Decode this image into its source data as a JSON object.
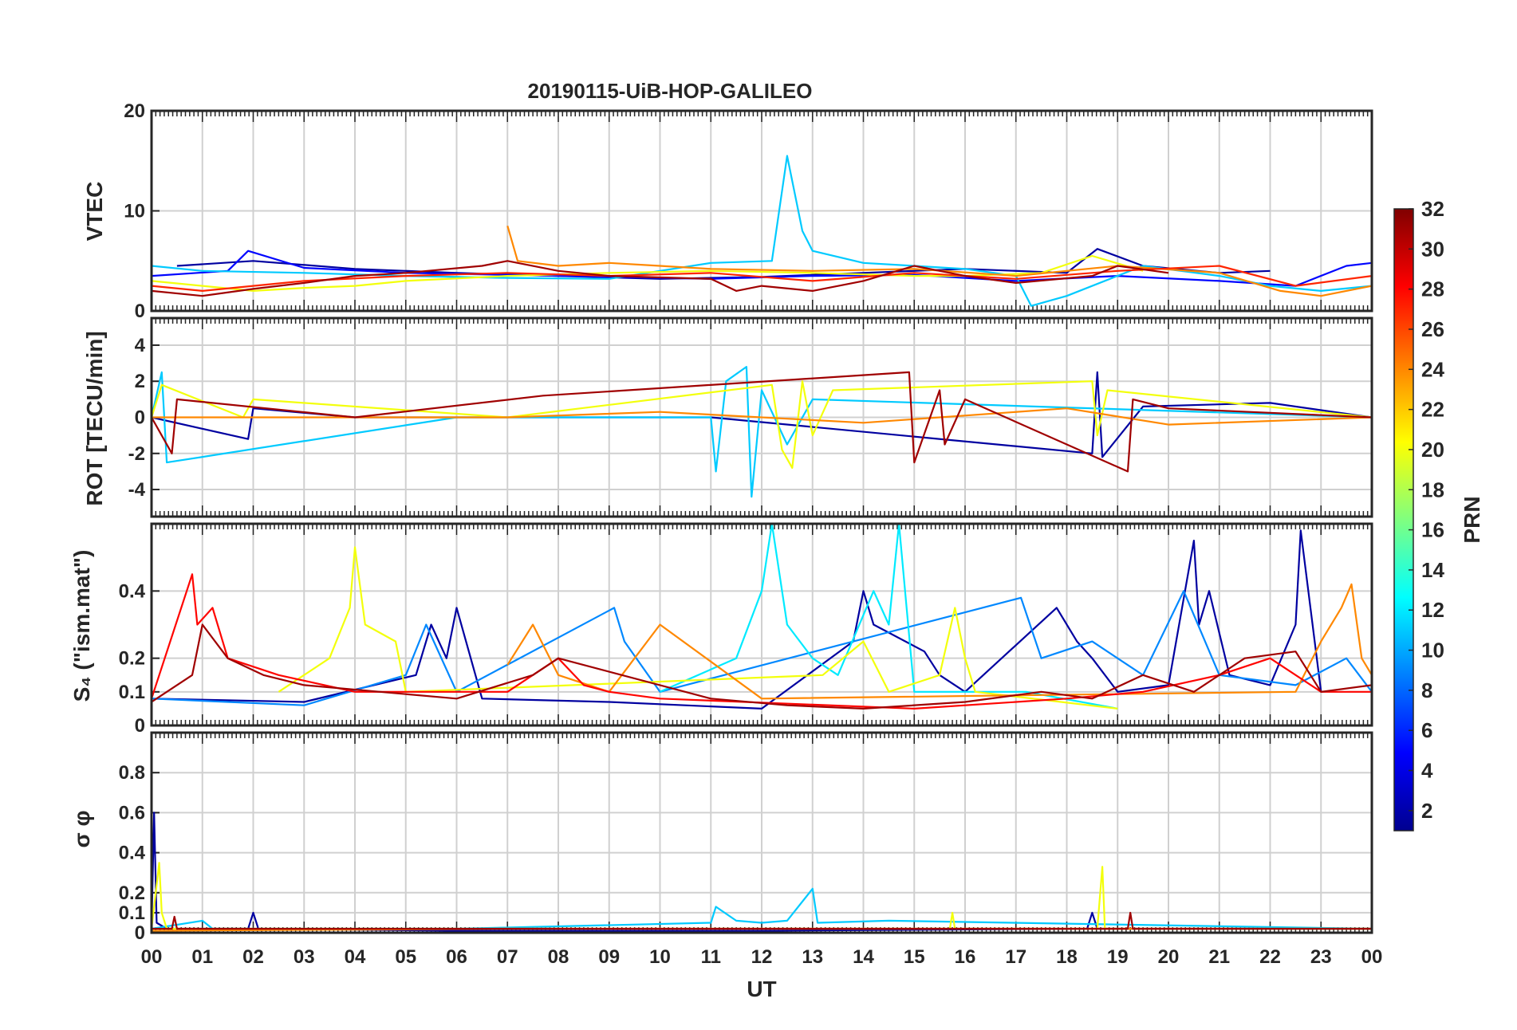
{
  "figure": {
    "title": "20190115-UiB-HOP-GALILEO",
    "xlabel": "UT"
  },
  "chart_data": [
    {
      "type": "line",
      "panel": "VTEC",
      "ylabel": "VTEC",
      "ylim": [
        0,
        20
      ],
      "yticks": [
        0,
        10,
        20
      ],
      "xlim": [
        0,
        24
      ],
      "grid": true,
      "series": [
        {
          "prn": 2,
          "x": [
            0.5,
            2,
            4,
            6,
            8,
            10,
            12,
            14,
            16,
            18,
            18.6,
            19.5,
            21,
            22
          ],
          "y": [
            4.5,
            5,
            4.2,
            3.8,
            3.5,
            3.2,
            3.4,
            3.8,
            4.2,
            3.8,
            6.2,
            4.5,
            3.8,
            4.0
          ]
        },
        {
          "prn": 5,
          "x": [
            0,
            1.5,
            1.9,
            3,
            5,
            7,
            9,
            11,
            13,
            15,
            17,
            19,
            21,
            22.5,
            23.5,
            24
          ],
          "y": [
            3.5,
            4,
            6,
            4.3,
            3.8,
            3.6,
            3.4,
            3.2,
            3.5,
            3.6,
            3.0,
            3.5,
            3.0,
            2.5,
            4.5,
            4.8
          ]
        },
        {
          "prn": 11,
          "x": [
            0,
            1,
            3,
            5,
            7,
            9,
            11,
            12.2,
            12.5,
            12.8,
            13,
            14,
            15,
            16,
            17,
            17.3,
            18,
            19.5,
            21,
            22,
            23,
            24
          ],
          "y": [
            4.5,
            4,
            3.8,
            3.5,
            3.3,
            3.2,
            4.8,
            5,
            15.5,
            8,
            6,
            4.8,
            4.5,
            4.2,
            3.5,
            0.5,
            1.5,
            4.5,
            3.5,
            2.5,
            2.0,
            2.5
          ]
        },
        {
          "prn": 20,
          "x": [
            0,
            1,
            2,
            3,
            4,
            5,
            7,
            9,
            11,
            13,
            15,
            16,
            17.5,
            18.5,
            19.5
          ],
          "y": [
            3.0,
            2.5,
            2.0,
            2.3,
            2.5,
            3.0,
            3.5,
            3.8,
            4.0,
            3.8,
            3.5,
            3.5,
            3.8,
            5.5,
            4.0
          ]
        },
        {
          "prn": 24,
          "x": [
            7.0,
            7.2,
            8,
            9,
            10,
            11,
            13,
            15,
            17,
            19,
            21,
            22.2,
            23,
            24
          ],
          "y": [
            8.5,
            5.0,
            4.5,
            4.8,
            4.5,
            4.2,
            4.0,
            4.2,
            3.5,
            4.5,
            3.8,
            2.0,
            1.5,
            2.5
          ]
        },
        {
          "prn": 27,
          "x": [
            0,
            1,
            2,
            3,
            5,
            7,
            9,
            11,
            13,
            15,
            17,
            19,
            21,
            22.5,
            24
          ],
          "y": [
            2.5,
            2.0,
            2.5,
            3.0,
            3.5,
            3.8,
            3.5,
            3.8,
            3.0,
            3.8,
            3.2,
            4.0,
            4.5,
            2.5,
            3.5
          ]
        },
        {
          "prn": 31,
          "x": [
            0,
            1,
            2,
            3,
            4,
            5,
            6.5,
            7,
            8,
            9,
            11,
            11.5,
            12,
            13,
            14,
            15,
            16,
            17,
            18.5,
            19,
            20
          ],
          "y": [
            2.0,
            1.5,
            2.2,
            2.8,
            3.5,
            3.8,
            4.5,
            5.0,
            4.0,
            3.5,
            3.2,
            2.0,
            2.5,
            2.0,
            3.0,
            4.5,
            3.5,
            2.8,
            3.5,
            4.5,
            3.8
          ]
        }
      ]
    },
    {
      "type": "line",
      "panel": "ROT",
      "ylabel": "ROT [TECU/min]",
      "ylim": [
        -5.5,
        5.5
      ],
      "yticks": [
        -4,
        -2,
        0,
        2,
        4
      ],
      "xlim": [
        0,
        24
      ],
      "grid": true,
      "series": [
        {
          "prn": 2,
          "x": [
            0,
            1.9,
            2.0,
            4,
            11,
            18.5,
            18.6,
            18.7,
            19.5,
            22,
            24
          ],
          "y": [
            0,
            -1.2,
            0.5,
            0,
            0,
            -2.0,
            2.5,
            -2.2,
            0.6,
            0.8,
            0
          ]
        },
        {
          "prn": 11,
          "x": [
            0,
            0.2,
            0.3,
            6,
            11.0,
            11.1,
            11.3,
            11.7,
            11.8,
            12.0,
            12.5,
            13.0,
            24
          ],
          "y": [
            0,
            2.5,
            -2.5,
            0,
            0,
            -3.0,
            2.0,
            2.8,
            -4.4,
            1.5,
            -1.5,
            1.0,
            0
          ]
        },
        {
          "prn": 20,
          "x": [
            0,
            0.2,
            1.8,
            2.0,
            7,
            12.2,
            12.4,
            12.6,
            12.8,
            13.0,
            13.4,
            18.5,
            18.6,
            18.8,
            24
          ],
          "y": [
            0,
            1.8,
            0,
            1.0,
            0,
            1.8,
            -1.8,
            -2.8,
            2.0,
            -1.0,
            1.5,
            2.0,
            -1.0,
            1.5,
            0
          ]
        },
        {
          "prn": 24,
          "x": [
            0,
            7,
            10,
            14,
            18,
            20,
            24
          ],
          "y": [
            0,
            0,
            0.3,
            -0.3,
            0.5,
            -0.4,
            0
          ]
        },
        {
          "prn": 31,
          "x": [
            0,
            0.4,
            0.5,
            4,
            7.7,
            14.9,
            15.0,
            15.5,
            15.6,
            16,
            19.2,
            19.3,
            20,
            24
          ],
          "y": [
            0,
            -2.0,
            1.0,
            0,
            1.2,
            2.5,
            -2.5,
            1.5,
            -1.5,
            1.0,
            -3.0,
            1.0,
            0.5,
            0
          ]
        }
      ]
    },
    {
      "type": "line",
      "panel": "S4",
      "ylabel": "S₄ (\"ism.mat\")",
      "ylim": [
        0,
        0.6
      ],
      "yticks": [
        0,
        0.1,
        0.2,
        0.4
      ],
      "xlim": [
        0,
        24
      ],
      "grid": true,
      "series": [
        {
          "prn": 2,
          "x": [
            0,
            3,
            5.2,
            5.5,
            5.8,
            6.0,
            6.5,
            9,
            12,
            13.8,
            14.0,
            14.2,
            15.2,
            15.5,
            16,
            17.8,
            18.2,
            18.5,
            19,
            20,
            20.5,
            20.6,
            20.8,
            21.2,
            22,
            22.5,
            22.6,
            23
          ],
          "y": [
            0.08,
            0.07,
            0.15,
            0.3,
            0.2,
            0.35,
            0.08,
            0.07,
            0.05,
            0.25,
            0.4,
            0.3,
            0.22,
            0.15,
            0.1,
            0.35,
            0.25,
            0.2,
            0.1,
            0.12,
            0.55,
            0.3,
            0.4,
            0.15,
            0.12,
            0.3,
            0.58,
            0.1
          ]
        },
        {
          "prn": 9,
          "x": [
            0,
            3,
            5,
            5.4,
            6,
            9.1,
            9.3,
            10,
            17.1,
            17.5,
            18.5,
            19.5,
            20.3,
            21,
            22.5,
            23.5,
            24
          ],
          "y": [
            0.08,
            0.06,
            0.15,
            0.3,
            0.1,
            0.35,
            0.25,
            0.1,
            0.38,
            0.2,
            0.25,
            0.15,
            0.4,
            0.15,
            0.12,
            0.2,
            0.1
          ]
        },
        {
          "prn": 12,
          "x": [
            10,
            11.5,
            12.0,
            12.2,
            12.5,
            13.0,
            13.5,
            14.2,
            14.5,
            14.7,
            15,
            17.2,
            19
          ],
          "y": [
            0.1,
            0.2,
            0.4,
            0.6,
            0.3,
            0.2,
            0.15,
            0.4,
            0.3,
            0.6,
            0.1,
            0.1,
            0.05
          ]
        },
        {
          "prn": 20,
          "x": [
            2.5,
            3.5,
            3.9,
            4.0,
            4.2,
            4.8,
            5,
            13.2,
            14.0,
            14.5,
            15.5,
            15.8,
            16.0,
            16.2,
            19
          ],
          "y": [
            0.1,
            0.2,
            0.35,
            0.53,
            0.3,
            0.25,
            0.1,
            0.15,
            0.25,
            0.1,
            0.15,
            0.35,
            0.2,
            0.1,
            0.05
          ]
        },
        {
          "prn": 24,
          "x": [
            7.0,
            7.5,
            8,
            9,
            9.5,
            10.0,
            12,
            22.5,
            23.0,
            23.4,
            23.6,
            23.8,
            24
          ],
          "y": [
            0.18,
            0.3,
            0.15,
            0.1,
            0.2,
            0.3,
            0.08,
            0.1,
            0.25,
            0.35,
            0.42,
            0.2,
            0.15
          ]
        },
        {
          "prn": 28,
          "x": [
            0,
            0.8,
            0.9,
            1.2,
            1.5,
            2.5,
            4,
            7,
            8,
            8.5,
            9,
            10,
            15,
            18,
            19.5,
            21,
            22,
            23,
            24
          ],
          "y": [
            0.08,
            0.45,
            0.3,
            0.35,
            0.2,
            0.15,
            0.1,
            0.1,
            0.2,
            0.12,
            0.1,
            0.08,
            0.05,
            0.08,
            0.1,
            0.15,
            0.2,
            0.1,
            0.1
          ]
        },
        {
          "prn": 31,
          "x": [
            0,
            0.8,
            1.0,
            1.5,
            2.2,
            3,
            6,
            7.5,
            8,
            11,
            12.5,
            14,
            16,
            17.5,
            18.5,
            19.5,
            20.5,
            21.5,
            22.5,
            23,
            24
          ],
          "y": [
            0.07,
            0.15,
            0.3,
            0.2,
            0.15,
            0.12,
            0.08,
            0.15,
            0.2,
            0.08,
            0.06,
            0.05,
            0.07,
            0.1,
            0.08,
            0.15,
            0.1,
            0.2,
            0.22,
            0.1,
            0.12
          ]
        }
      ]
    },
    {
      "type": "line",
      "panel": "sigma_phi",
      "ylabel": "σ φ",
      "ylim": [
        0,
        1.0
      ],
      "yticks": [
        0,
        0.1,
        0.2,
        0.4,
        0.6,
        0.8
      ],
      "xlim": [
        0,
        24
      ],
      "grid": true,
      "series": [
        {
          "prn": 2,
          "x": [
            0,
            0.05,
            0.1,
            0.3,
            1.9,
            2.0,
            2.1,
            6,
            12,
            18.4,
            18.5,
            18.6,
            24
          ],
          "y": [
            0.02,
            0.6,
            0.05,
            0.02,
            0.02,
            0.1,
            0.02,
            0.01,
            0.01,
            0.02,
            0.1,
            0.02,
            0.02
          ]
        },
        {
          "prn": 11,
          "x": [
            0,
            1.0,
            1.2,
            6,
            11,
            11.1,
            11.5,
            12,
            12.5,
            13.0,
            13.1,
            14.5,
            24
          ],
          "y": [
            0.02,
            0.06,
            0.02,
            0.02,
            0.05,
            0.13,
            0.06,
            0.05,
            0.06,
            0.22,
            0.05,
            0.06,
            0.02
          ]
        },
        {
          "prn": 20,
          "x": [
            0,
            0.15,
            0.2,
            0.3,
            5,
            15.7,
            15.75,
            15.8,
            18.6,
            18.7,
            18.75,
            24
          ],
          "y": [
            0.02,
            0.35,
            0.1,
            0.02,
            0.02,
            0.02,
            0.1,
            0.02,
            0.02,
            0.33,
            0.02,
            0.02
          ]
        },
        {
          "prn": 24,
          "x": [
            0,
            7,
            12,
            18,
            24
          ],
          "y": [
            0.01,
            0.02,
            0.02,
            0.02,
            0.02
          ]
        },
        {
          "prn": 31,
          "x": [
            0,
            0.4,
            0.45,
            0.5,
            10,
            19.2,
            19.25,
            19.3,
            24
          ],
          "y": [
            0.02,
            0.02,
            0.08,
            0.02,
            0.02,
            0.02,
            0.1,
            0.02,
            0.02
          ]
        }
      ]
    }
  ],
  "x_tick_labels": [
    "00",
    "01",
    "02",
    "03",
    "04",
    "05",
    "06",
    "07",
    "08",
    "09",
    "10",
    "11",
    "12",
    "13",
    "14",
    "15",
    "16",
    "17",
    "18",
    "19",
    "20",
    "21",
    "22",
    "23",
    "00"
  ],
  "colorbar": {
    "label": "PRN",
    "range": [
      1,
      32
    ],
    "tick_labels": [
      "2",
      "4",
      "6",
      "8",
      "10",
      "12",
      "14",
      "16",
      "18",
      "20",
      "22",
      "24",
      "26",
      "28",
      "30",
      "32"
    ],
    "colormap": "jet"
  }
}
